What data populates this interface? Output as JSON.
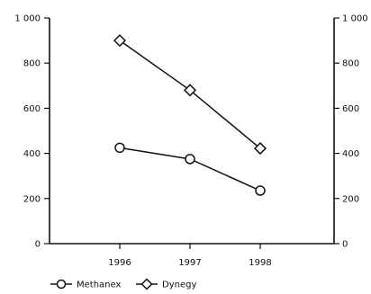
{
  "chart_data": {
    "type": "line",
    "categories": [
      "1996",
      "1997",
      "1998"
    ],
    "ylim": [
      0,
      1000
    ],
    "yticks": [
      0,
      200,
      400,
      600,
      800,
      1000
    ],
    "ytick_labels": [
      "0",
      "200",
      "400",
      "600",
      "800",
      "1 000"
    ],
    "right_ytick_labels": [
      "0",
      "200",
      "400",
      "600",
      "800",
      "1 000"
    ],
    "grid": false,
    "legend_position": "bottom-left",
    "series": [
      {
        "name": "Methanex",
        "marker": "circle",
        "values": [
          425,
          375,
          235
        ]
      },
      {
        "name": "Dynegy",
        "marker": "diamond",
        "values": [
          900,
          680,
          422
        ]
      }
    ]
  }
}
